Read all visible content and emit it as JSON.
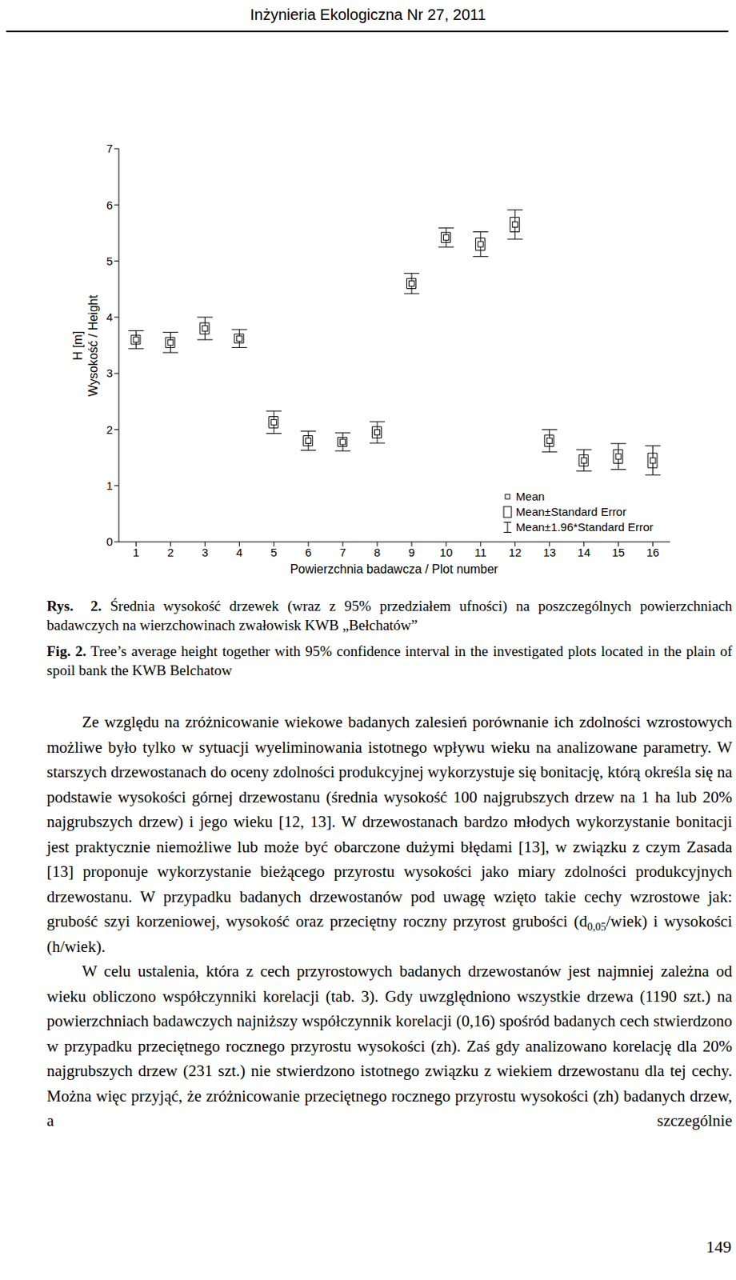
{
  "header": {
    "journal": "Inżynieria Ekologiczna Nr 27, 2011"
  },
  "chart_data": {
    "type": "errorbar",
    "x_label": "Powierzchnia badawcza / Plot number",
    "y_label": [
      "H [m]",
      "Wysokość / Height"
    ],
    "categories": [
      "1",
      "2",
      "3",
      "4",
      "5",
      "6",
      "7",
      "8",
      "9",
      "10",
      "11",
      "12",
      "13",
      "14",
      "15",
      "16"
    ],
    "series": [
      {
        "name": "Mean",
        "color": "#000000",
        "marker": "square",
        "values": [
          3.6,
          3.55,
          3.8,
          3.62,
          2.13,
          1.8,
          1.78,
          1.95,
          4.6,
          5.42,
          5.3,
          5.65,
          1.8,
          1.45,
          1.52,
          1.45
        ]
      }
    ],
    "error_bars": [
      {
        "name": "Mean±Standard Error",
        "values": [
          0.08,
          0.09,
          0.1,
          0.08,
          0.1,
          0.09,
          0.08,
          0.1,
          0.09,
          0.09,
          0.11,
          0.13,
          0.1,
          0.1,
          0.12,
          0.13
        ]
      },
      {
        "name": "Mean±1.96*Standard Error",
        "values": [
          0.16,
          0.18,
          0.2,
          0.16,
          0.2,
          0.17,
          0.16,
          0.19,
          0.18,
          0.17,
          0.22,
          0.26,
          0.2,
          0.19,
          0.23,
          0.26
        ]
      }
    ],
    "ylim": [
      0,
      7
    ],
    "yticks": [
      0,
      1,
      2,
      3,
      4,
      5,
      6,
      7
    ],
    "grid": false,
    "legend": "lower right"
  },
  "captions": [
    {
      "label": "Rys.  2.",
      "text": "Średnia wysokość drzewek (wraz z 95% przedziałem ufności) na poszczególnych powierzchniach badawczych na wierzchowinach zwałowisk KWB „Bełchatów”"
    },
    {
      "label": "Fig. 2.",
      "text": "Tree’s average height together with 95% confidence interval in the investigated plots located in the plain of spoil bank the KWB Belchatow"
    }
  ],
  "paragraphs": [
    [
      "Ze względu na zróżnicowanie wiekowe badanych zalesień porównanie ich zdolności wzrostowych możliwe było tylko w sytuacji wyeliminowania istotnego wpływu wieku na analizowane parametry. W starszych drzewostanach do oceny zdolności produkcyjnej wykorzystuje się bonitację, którą określa się na podstawie wysokości górnej drzewostanu (średnia wysokość 100 najgrubszych drzew na 1 ha lub 20% najgrubszych drzew) i jego wieku [12, 13]. W drzewostanach bardzo młodych wykorzystanie bonitacji jest praktycznie niemożliwe lub może być obarczone dużymi błędami [13], w związku z czym Zasada [13] proponuje wykorzystanie bieżącego przyrostu wysokości jako miary zdolności produkcyjnych drzewostanu. W przypadku badanych drzewostanów pod uwagę wzięto takie cechy wzrostowe jak: grubość szyi korzeniowej, wysokość oraz przeciętny roczny przyrost grubości (d",
      {
        "sub": "0,05"
      },
      "/wiek) i wysokości (h/wiek)."
    ],
    [
      "W celu ustalenia, która z cech przyrostowych badanych drzewostanów jest najmniej zależna od wieku obliczono współczynniki korelacji (tab. 3). Gdy uwzględniono wszystkie drzewa (1190 szt.) na powierzchniach badawczych najniższy współczynnik korelacji (0,16) spośród badanych cech stwierdzono w przypadku przeciętnego rocznego przyrostu wysokości (zh). Zaś gdy analizowano korelację dla 20% najgrubszych drzew (231 szt.) nie stwierdzono istotnego związku z wiekiem drzewostanu dla tej cechy. Można więc przyjąć, że zróżnicowanie przeciętnego rocznego przyrostu wysokości (zh) badanych drzew, a szczególnie"
    ]
  ],
  "page_number": "149"
}
